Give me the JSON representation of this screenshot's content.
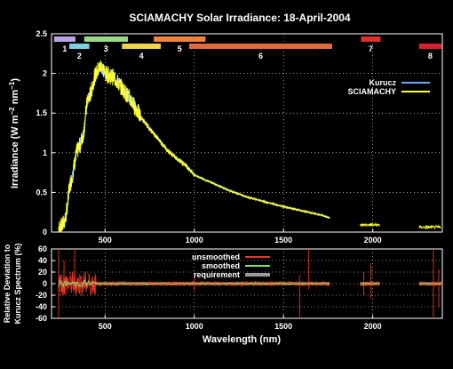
{
  "chart_data": [
    {
      "type": "line",
      "title": "SCIAMACHY Solar Irradiance: 18-April-2004",
      "ylabel_main": "Irradiance (W m",
      "ylabel_sup1": "−2",
      "ylabel_mid": " nm",
      "ylabel_sup2": "−1",
      "ylabel_end": ")",
      "xlim": [
        200,
        2390
      ],
      "ylim": [
        0,
        2.5
      ],
      "yticks": [
        {
          "value": 0,
          "label": "0"
        },
        {
          "value": 0.5,
          "label": "0.5"
        },
        {
          "value": 1,
          "label": "1"
        },
        {
          "value": 1.5,
          "label": "1.5"
        },
        {
          "value": 2,
          "label": "2"
        },
        {
          "value": 2.5,
          "label": "2.5"
        }
      ],
      "xticks": [
        {
          "value": 500,
          "label": "500"
        },
        {
          "value": 1000,
          "label": "1000"
        },
        {
          "value": 1500,
          "label": "1500"
        },
        {
          "value": 2000,
          "label": "2000"
        }
      ],
      "grid": true,
      "legend_position": "top-right",
      "series": [
        {
          "name": "Kurucz",
          "color": "#6fa8ff"
        },
        {
          "name": "SCIAMACHY",
          "color": "#ffff33"
        }
      ],
      "spectrum_points": [
        [
          240,
          0.05
        ],
        [
          260,
          0.08
        ],
        [
          280,
          0.18
        ],
        [
          300,
          0.55
        ],
        [
          320,
          0.75
        ],
        [
          340,
          1.0
        ],
        [
          360,
          1.1
        ],
        [
          380,
          1.25
        ],
        [
          400,
          1.65
        ],
        [
          420,
          1.75
        ],
        [
          440,
          1.95
        ],
        [
          460,
          2.05
        ],
        [
          480,
          2.1
        ],
        [
          500,
          2.0
        ],
        [
          550,
          1.95
        ],
        [
          600,
          1.8
        ],
        [
          650,
          1.65
        ],
        [
          700,
          1.45
        ],
        [
          750,
          1.3
        ],
        [
          800,
          1.17
        ],
        [
          850,
          1.03
        ],
        [
          900,
          0.93
        ],
        [
          950,
          0.85
        ],
        [
          1000,
          0.72
        ],
        [
          1100,
          0.62
        ],
        [
          1200,
          0.52
        ],
        [
          1300,
          0.44
        ],
        [
          1400,
          0.38
        ],
        [
          1500,
          0.32
        ],
        [
          1600,
          0.27
        ],
        [
          1700,
          0.22
        ],
        [
          1760,
          0.18
        ]
      ],
      "extra_segments": [
        {
          "range": [
            1930,
            2040
          ],
          "value": 0.09
        },
        {
          "range": [
            2260,
            2380
          ],
          "value": 0.06
        }
      ],
      "channels": [
        {
          "label": "1",
          "range": [
            214,
            334
          ],
          "color": "#b8a3e0",
          "row": 0
        },
        {
          "label": "2",
          "range": [
            300,
            412
          ],
          "color": "#7ecfe0",
          "row": 1
        },
        {
          "label": "3",
          "range": [
            383,
            628
          ],
          "color": "#9ad98a",
          "row": 0
        },
        {
          "label": "4",
          "range": [
            595,
            812
          ],
          "color": "#f0d64a",
          "row": 1
        },
        {
          "label": "5",
          "range": [
            773,
            1063
          ],
          "color": "#f0853a",
          "row": 0
        },
        {
          "label": "6",
          "range": [
            971,
            1773
          ],
          "color": "#e06a40",
          "row": 1
        },
        {
          "label": "7",
          "range": [
            1934,
            2044
          ],
          "color": "#e0302a",
          "row": 0
        },
        {
          "label": "8",
          "range": [
            2259,
            2386
          ],
          "color": "#d42230",
          "row": 1
        }
      ]
    },
    {
      "type": "line",
      "xlabel": "Wavelength (nm)",
      "ylabel_line1": "Relative Deviation to",
      "ylabel_line2": "Kurucz Spectrum (%)",
      "xlim": [
        200,
        2390
      ],
      "ylim": [
        -60,
        60
      ],
      "yticks": [
        {
          "value": 60,
          "label": "60"
        },
        {
          "value": 40,
          "label": "40"
        },
        {
          "value": 20,
          "label": "20"
        },
        {
          "value": 0,
          "label": "0"
        },
        {
          "value": -20,
          "label": "-20"
        },
        {
          "value": -40,
          "label": "-40"
        },
        {
          "value": -60,
          "label": "-60"
        }
      ],
      "xticks": [
        {
          "value": 500,
          "label": "500"
        },
        {
          "value": 1000,
          "label": "1000"
        },
        {
          "value": 1500,
          "label": "1500"
        },
        {
          "value": 2000,
          "label": "2000"
        }
      ],
      "grid": true,
      "legend_position": "top-center",
      "series": [
        {
          "name": "unsmoothed",
          "color": "#e8382a"
        },
        {
          "name": "smoothed",
          "color": "#7fe05a"
        },
        {
          "name": "requirement",
          "color": "#9a9a9a"
        }
      ],
      "requirement_ranges": [
        [
          240,
          1760
        ],
        [
          1930,
          2040
        ],
        [
          2260,
          2390
        ]
      ],
      "spikes": [
        {
          "x": 240,
          "top": 60,
          "bottom": -60
        },
        {
          "x": 270,
          "top": 40,
          "bottom": -20
        },
        {
          "x": 330,
          "top": 60,
          "bottom": -10
        },
        {
          "x": 1000,
          "top": 15,
          "bottom": -12
        },
        {
          "x": 1590,
          "top": 15,
          "bottom": -60
        },
        {
          "x": 1640,
          "top": 60,
          "bottom": -10
        },
        {
          "x": 1950,
          "top": 20,
          "bottom": -20
        },
        {
          "x": 1990,
          "top": 35,
          "bottom": -25
        },
        {
          "x": 2340,
          "top": 60,
          "bottom": -60
        },
        {
          "x": 2370,
          "top": 25,
          "bottom": -40
        }
      ]
    }
  ]
}
